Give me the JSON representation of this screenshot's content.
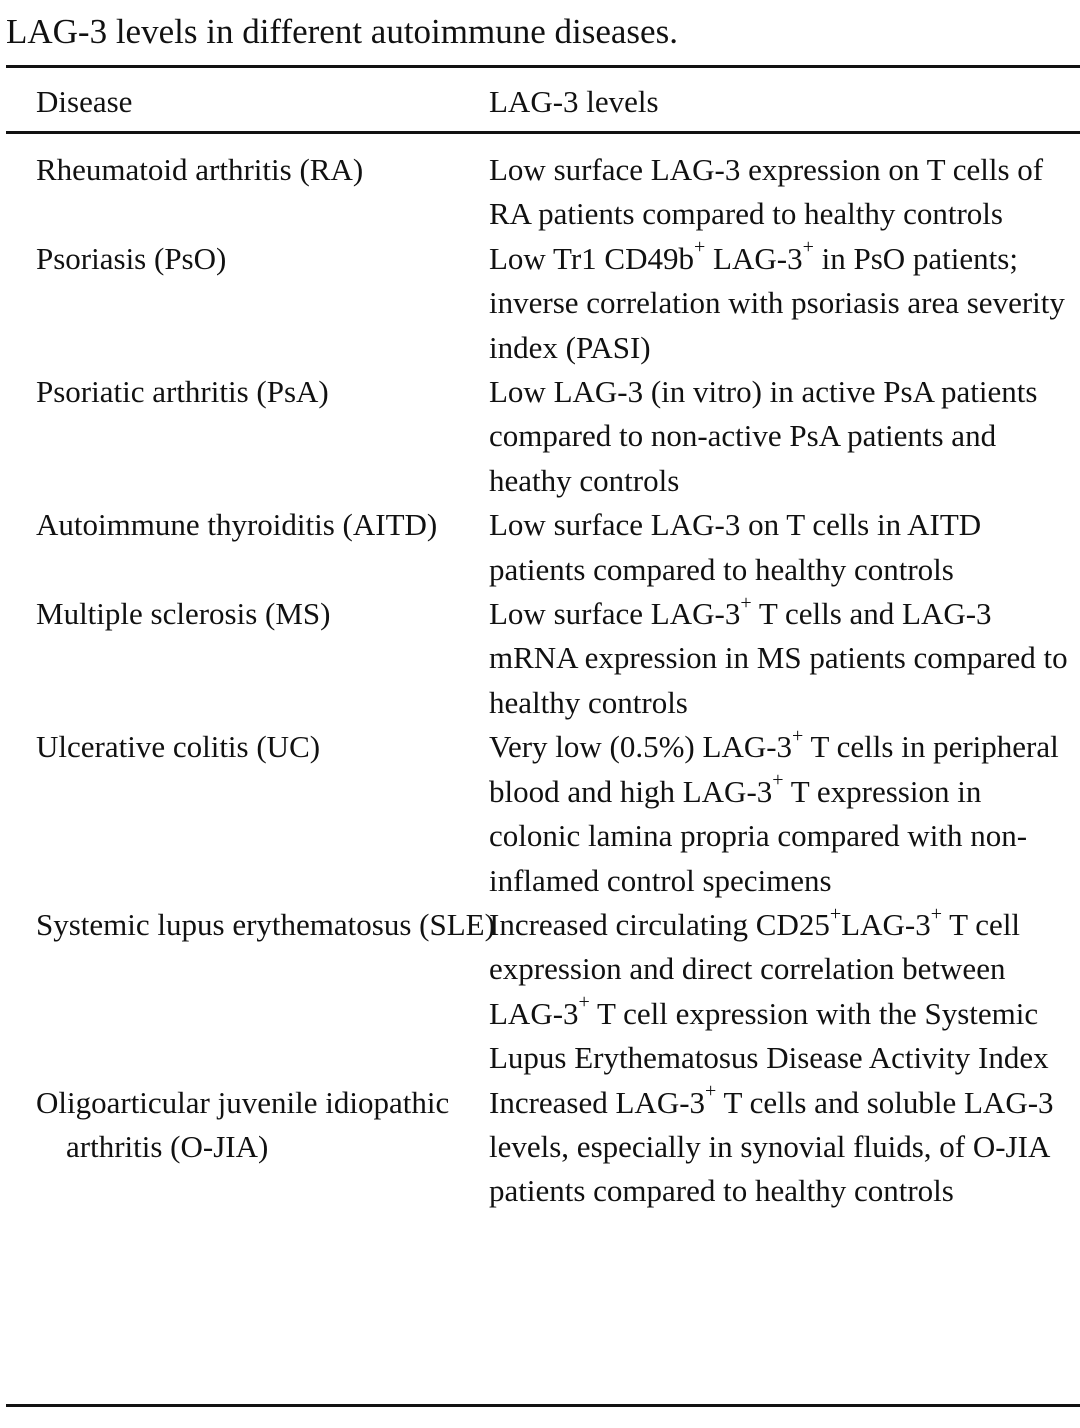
{
  "caption": "LAG-3 levels in different autoimmune diseases.",
  "columns": {
    "disease": "Disease",
    "levels": "LAG-3 levels"
  },
  "rows": [
    {
      "disease": "Rheumatoid arthritis (RA)",
      "levels": [
        {
          "t": "Low surface LAG-3 expression on T cells of RA patients compared to healthy controls"
        }
      ]
    },
    {
      "disease": "Psoriasis (PsO)",
      "levels": [
        {
          "t": "Low Tr1 CD49b"
        },
        {
          "sup": "+"
        },
        {
          "t": " LAG-3"
        },
        {
          "sup": "+"
        },
        {
          "t": " in PsO patients; inverse correlation with psoriasis area severity index (PASI)"
        }
      ]
    },
    {
      "disease": "Psoriatic arthritis (PsA)",
      "levels": [
        {
          "t": "Low LAG-3 (in vitro) in active PsA patients compared to non-active PsA patients and heathy controls"
        }
      ]
    },
    {
      "disease": "Autoimmune thyroiditis (AITD)",
      "levels": [
        {
          "t": "Low surface LAG-3 on T cells in AITD patients compared to healthy controls"
        }
      ]
    },
    {
      "disease": "Multiple sclerosis (MS)",
      "levels": [
        {
          "t": "Low surface LAG-3"
        },
        {
          "sup": "+"
        },
        {
          "t": " T cells and LAG-3 mRNA expression in MS patients compared to healthy controls"
        }
      ]
    },
    {
      "disease": "Ulcerative colitis (UC)",
      "levels": [
        {
          "t": "Very low (0.5%) LAG-3"
        },
        {
          "sup": "+"
        },
        {
          "t": " T cells in peripheral blood and high LAG-3"
        },
        {
          "sup": "+"
        },
        {
          "t": " T expression in colonic lamina propria compared with non-inflamed control specimens"
        }
      ]
    },
    {
      "disease": "Systemic lupus erythematosus (SLE)",
      "levels": [
        {
          "t": "Increased circulating CD25"
        },
        {
          "sup": "+"
        },
        {
          "t": "LAG-3"
        },
        {
          "sup": "+"
        },
        {
          "t": " T cell expression and direct correlation between LAG-3"
        },
        {
          "sup": "+"
        },
        {
          "t": " T cell expression with the Systemic Lupus Erythematosus Disease Activity Index"
        }
      ]
    },
    {
      "disease": "Oligoarticular juvenile idiopathic arthritis (O-JIA)",
      "levels": [
        {
          "t": "Increased LAG-3"
        },
        {
          "sup": "+"
        },
        {
          "t": " T cells and soluble LAG-3 levels, especially in synovial fluids, of O-JIA patients compared to healthy controls"
        }
      ]
    }
  ]
}
